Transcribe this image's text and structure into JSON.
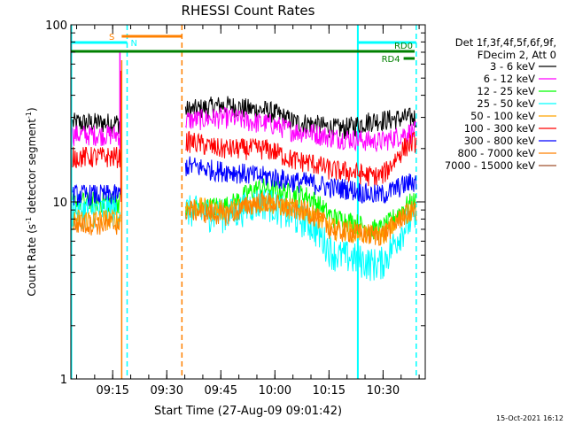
{
  "chart_data": {
    "type": "line",
    "title": "RHESSI Count Rates",
    "xlabel": "Start Time (27-Aug-09 09:01:42)",
    "ylabel_main": "Count Rate (s",
    "ylabel_sup": "-1",
    "ylabel_rest": " detector segment",
    "ylabel_sup2": "-1",
    "ylabel_end": ")",
    "yscale": "log",
    "ylim": [
      1,
      100
    ],
    "y_ticks": [
      {
        "v": 1,
        "label": "1"
      },
      {
        "v": 10,
        "label": "10"
      },
      {
        "v": 100,
        "label": "100"
      }
    ],
    "xlim_min": [
      1.7,
      100.0
    ],
    "x_ticks": [
      {
        "m": 13.3,
        "label": "09:15"
      },
      {
        "m": 28.3,
        "label": "09:30"
      },
      {
        "m": 43.3,
        "label": "09:45"
      },
      {
        "m": 58.3,
        "label": "10:00"
      },
      {
        "m": 73.3,
        "label": "10:15"
      },
      {
        "m": 88.3,
        "label": "10:30"
      }
    ],
    "legend_header": [
      "Det 1f,3f,4f,5f,6f,9f,",
      "FDecim 2, Att 0"
    ],
    "legend_placement": "right",
    "series": [
      {
        "name": "3 - 6 keV",
        "color": "#000000",
        "pre": 28,
        "post": [
          33,
          35,
          33,
          28,
          26,
          29,
          30
        ]
      },
      {
        "name": "6 - 12 keV",
        "color": "#ff00ff",
        "pre": 24,
        "post": [
          29,
          30,
          28,
          25,
          23,
          22,
          25
        ]
      },
      {
        "name": "12 - 25 keV",
        "color": "#00ff00",
        "pre": 10,
        "post": [
          9,
          9.5,
          12,
          11,
          8,
          7,
          10
        ]
      },
      {
        "name": "25 - 50 keV",
        "color": "#00ffff",
        "pre": 9,
        "post": [
          9,
          8.5,
          10,
          8,
          5,
          4.5,
          8
        ]
      },
      {
        "name": "50 - 100 keV",
        "color": "#ffa500",
        "pre": 8,
        "post": [
          9.5,
          9,
          10,
          9,
          7,
          6.5,
          9
        ]
      },
      {
        "name": "100 - 300 keV",
        "color": "#ff0000",
        "pre": 18,
        "post": [
          22,
          20,
          20,
          17,
          15,
          14,
          22
        ]
      },
      {
        "name": "300 - 800 keV",
        "color": "#0000ff",
        "pre": 11,
        "post": [
          16,
          15,
          14,
          13,
          12,
          11,
          13
        ]
      },
      {
        "name": "800 - 7000 keV",
        "color": "#ff8000",
        "pre": 7.5,
        "post": [
          9,
          8.5,
          10,
          9,
          6.8,
          6.5,
          9
        ]
      },
      {
        "name": "7000 - 15000 keV",
        "color": "#a0522d",
        "pre": null,
        "post": null
      }
    ],
    "data_gap_minutes": [
      15.8,
      32.5
    ],
    "annotations": {
      "s_bar": {
        "label": "S",
        "color": "#ff8000"
      },
      "n_bar": {
        "label": "N",
        "color": "#00ffff"
      },
      "rd0": {
        "label": "RD0",
        "color": "#008000"
      },
      "rd4": {
        "label": "RD4",
        "color": "#008000"
      }
    },
    "timestamp": "15-Oct-2021 16:12"
  }
}
